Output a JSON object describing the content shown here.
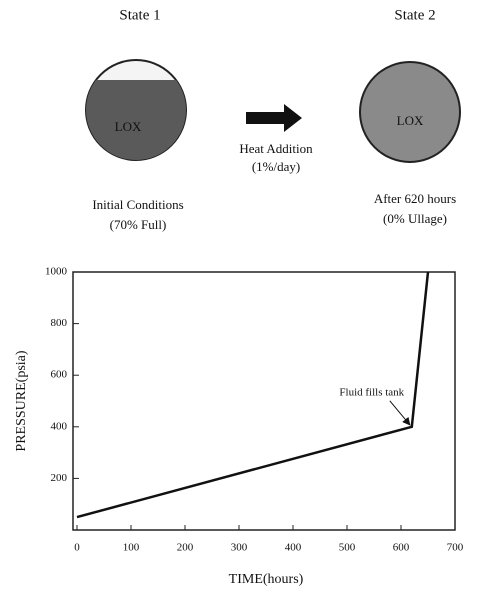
{
  "diagram": {
    "state1": {
      "title": "State 1",
      "label": "LOX",
      "caption": [
        "Initial Conditions",
        "(70% Full)"
      ]
    },
    "arrow_label": [
      "Heat Addition",
      "(1%/day)"
    ],
    "state2": {
      "title": "State 2",
      "label": "LOX",
      "caption": [
        "After 620 hours",
        "(0% Ullage)"
      ]
    }
  },
  "chart_data": {
    "type": "line",
    "x_label": "TIME(hours)",
    "y_label": "PRESSURE(psia)",
    "x": [
      0,
      620,
      650
    ],
    "series": [
      {
        "color": "#111111",
        "values": [
          50,
          400,
          1000
        ]
      }
    ],
    "annotation": "Fluid fills tank",
    "xlim": [
      0,
      700
    ],
    "ylim": [
      0,
      1000
    ],
    "xticks": [
      0,
      100,
      200,
      300,
      400,
      500,
      600,
      700
    ],
    "yticks": [
      200,
      400,
      600,
      800,
      1000
    ],
    "grid": false
  }
}
